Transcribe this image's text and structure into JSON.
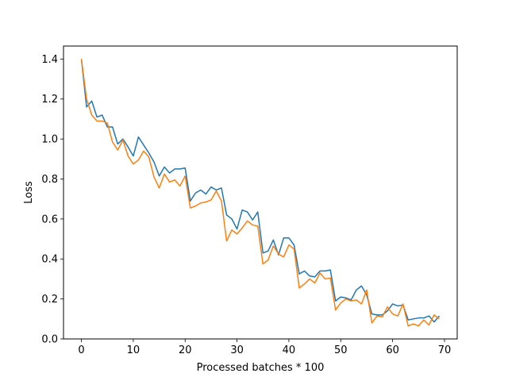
{
  "chart_data": {
    "type": "line",
    "title": "",
    "xlabel": "Processed batches * 100",
    "ylabel": "Loss",
    "xlim": [
      -3.45,
      72.45
    ],
    "ylim": [
      0.0,
      1.465
    ],
    "grid": false,
    "legend": "none",
    "xticks": [
      0,
      10,
      20,
      30,
      40,
      50,
      60,
      70
    ],
    "yticks": [
      0.0,
      0.2,
      0.4,
      0.6,
      0.8,
      1.0,
      1.2,
      1.4
    ],
    "x": [
      0,
      1,
      2,
      3,
      4,
      5,
      6,
      7,
      8,
      9,
      10,
      11,
      12,
      13,
      14,
      15,
      16,
      17,
      18,
      19,
      20,
      21,
      22,
      23,
      24,
      25,
      26,
      27,
      28,
      29,
      30,
      31,
      32,
      33,
      34,
      35,
      36,
      37,
      38,
      39,
      40,
      41,
      42,
      43,
      44,
      45,
      46,
      47,
      48,
      49,
      50,
      51,
      52,
      53,
      54,
      55,
      56,
      57,
      58,
      59,
      60,
      61,
      62,
      63,
      64,
      65,
      66,
      67,
      68,
      69
    ],
    "series": [
      {
        "color": "#1f77b4",
        "values": [
          1.4,
          1.16,
          1.19,
          1.11,
          1.12,
          1.06,
          1.06,
          0.975,
          1.0,
          0.96,
          0.915,
          1.01,
          0.97,
          0.93,
          0.885,
          0.815,
          0.86,
          0.83,
          0.85,
          0.85,
          0.855,
          0.69,
          0.73,
          0.745,
          0.725,
          0.76,
          0.745,
          0.755,
          0.62,
          0.6,
          0.55,
          0.645,
          0.635,
          0.595,
          0.635,
          0.43,
          0.44,
          0.495,
          0.42,
          0.505,
          0.505,
          0.47,
          0.325,
          0.34,
          0.315,
          0.31,
          0.34,
          0.34,
          0.345,
          0.19,
          0.21,
          0.205,
          0.195,
          0.245,
          0.265,
          0.22,
          0.125,
          0.12,
          0.12,
          0.14,
          0.175,
          0.165,
          0.17,
          0.095,
          0.1,
          0.105,
          0.105,
          0.115,
          0.085,
          0.115
        ]
      },
      {
        "color": "#ff7f0e",
        "values": [
          1.4,
          1.2,
          1.12,
          1.09,
          1.09,
          1.08,
          0.985,
          0.945,
          0.995,
          0.915,
          0.875,
          0.895,
          0.94,
          0.91,
          0.81,
          0.755,
          0.825,
          0.785,
          0.795,
          0.765,
          0.815,
          0.655,
          0.665,
          0.68,
          0.685,
          0.695,
          0.74,
          0.69,
          0.49,
          0.545,
          0.525,
          0.555,
          0.59,
          0.57,
          0.565,
          0.375,
          0.395,
          0.465,
          0.425,
          0.41,
          0.47,
          0.45,
          0.255,
          0.275,
          0.3,
          0.28,
          0.33,
          0.3,
          0.305,
          0.145,
          0.18,
          0.2,
          0.19,
          0.195,
          0.175,
          0.245,
          0.08,
          0.115,
          0.11,
          0.16,
          0.125,
          0.115,
          0.175,
          0.065,
          0.075,
          0.065,
          0.095,
          0.07,
          0.12,
          0.1
        ]
      }
    ]
  }
}
